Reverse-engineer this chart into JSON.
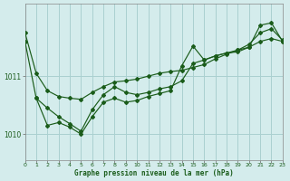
{
  "title": "Graphe pression niveau de la mer (hPa)",
  "bg_color": "#d4ecec",
  "grid_color": "#aad0d0",
  "line_color": "#1a5c1a",
  "xlim": [
    0,
    23
  ],
  "ylim": [
    1009.55,
    1012.25
  ],
  "yticks": [
    1010,
    1011
  ],
  "xtick_labels": [
    "0",
    "1",
    "2",
    "3",
    "4",
    "5",
    "6",
    "7",
    "8",
    "9",
    "10",
    "11",
    "12",
    "13",
    "14",
    "15",
    "16",
    "17",
    "18",
    "19",
    "20",
    "21",
    "22",
    "23"
  ],
  "hours": [
    0,
    1,
    2,
    3,
    4,
    5,
    6,
    7,
    8,
    9,
    10,
    11,
    12,
    13,
    14,
    15,
    16,
    17,
    18,
    19,
    20,
    21,
    22,
    23
  ],
  "series1": [
    1011.75,
    1011.05,
    1010.75,
    1010.65,
    1010.62,
    1010.6,
    1010.72,
    1010.82,
    1010.9,
    1010.92,
    1010.95,
    1011.0,
    1011.05,
    1011.08,
    1011.1,
    1011.15,
    1011.2,
    1011.3,
    1011.38,
    1011.45,
    1011.5,
    1011.6,
    1011.65,
    1011.6
  ],
  "series2": [
    1011.6,
    1010.62,
    1010.15,
    1010.2,
    1010.12,
    1010.0,
    1010.3,
    1010.55,
    1010.62,
    1010.55,
    1010.58,
    1010.65,
    1010.7,
    1010.75,
    1011.18,
    1011.52,
    1011.28,
    1011.35,
    1011.4,
    1011.42,
    1011.5,
    1011.88,
    1011.92,
    1011.6
  ],
  "series3": [
    null,
    1010.62,
    1010.45,
    1010.3,
    1010.18,
    1010.05,
    1010.42,
    1010.68,
    1010.82,
    1010.72,
    1010.68,
    1010.72,
    1010.78,
    1010.82,
    1010.92,
    1011.22,
    1011.28,
    1011.35,
    1011.4,
    1011.45,
    1011.55,
    1011.75,
    1011.82,
    1011.62
  ]
}
